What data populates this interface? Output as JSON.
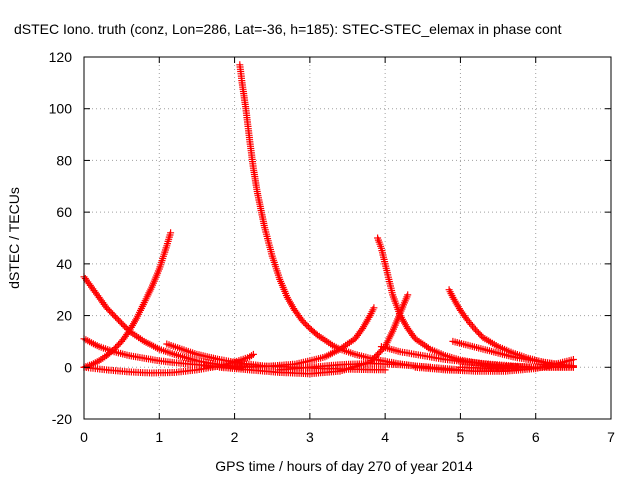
{
  "chart_data": {
    "type": "scatter",
    "title": "dSTEC Iono. truth (conz, Lon=286, Lat=-36, h=185): STEC-STEC_elemax in phase cont",
    "xlabel": "GPS time / hours of day 270 of year 2014",
    "ylabel": "dSTEC  / TECUs",
    "xlim": [
      0,
      7
    ],
    "ylim": [
      -20,
      120
    ],
    "xticks": [
      0,
      1,
      2,
      3,
      4,
      5,
      6,
      7
    ],
    "yticks": [
      -20,
      0,
      20,
      40,
      60,
      80,
      100,
      120
    ],
    "grid": true,
    "legend": "none",
    "marker": "+",
    "color": "#ff0000",
    "series": [
      {
        "x": [
          0.0,
          0.1,
          0.2,
          0.3,
          0.4,
          0.5,
          0.6,
          0.7,
          0.8,
          0.9,
          1.0,
          1.1,
          1.15
        ],
        "y": [
          0.0,
          1.0,
          2.5,
          4.5,
          7.0,
          10.0,
          14.0,
          19.0,
          25.0,
          31.0,
          38.0,
          47.0,
          52.0
        ]
      },
      {
        "x": [
          0.0,
          0.1,
          0.2,
          0.3,
          0.4,
          0.5,
          0.6,
          0.8,
          1.0,
          1.2,
          1.5,
          1.8,
          2.1
        ],
        "y": [
          35.0,
          31.0,
          27.0,
          23.0,
          20.0,
          17.0,
          14.0,
          10.0,
          7.0,
          5.0,
          2.5,
          1.0,
          0.0
        ]
      },
      {
        "x": [
          0.0,
          0.2,
          0.4,
          0.6,
          0.8,
          1.0,
          1.2,
          1.5,
          1.8
        ],
        "y": [
          11.0,
          8.0,
          6.0,
          4.5,
          3.5,
          2.5,
          1.8,
          1.0,
          0.3
        ]
      },
      {
        "x": [
          0.0,
          0.3,
          0.6,
          0.9,
          1.2,
          1.5,
          1.8,
          2.0,
          2.2,
          2.25
        ],
        "y": [
          0.0,
          -1.0,
          -1.8,
          -2.2,
          -2.0,
          -1.0,
          0.5,
          2.0,
          4.0,
          5.0
        ]
      },
      {
        "x": [
          1.1,
          1.3,
          1.5,
          1.8,
          2.1,
          2.4,
          2.8,
          3.2,
          3.6,
          4.0
        ],
        "y": [
          9.0,
          7.0,
          5.0,
          3.0,
          1.5,
          0.5,
          0.0,
          -0.5,
          -0.8,
          -1.0
        ]
      },
      {
        "x": [
          2.07,
          2.1,
          2.15,
          2.2,
          2.25,
          2.3,
          2.4,
          2.5,
          2.6,
          2.7,
          2.8,
          2.9,
          3.0,
          3.1,
          3.2,
          3.3,
          3.4,
          3.6,
          3.8,
          4.0,
          4.2,
          4.4,
          4.6
        ],
        "y": [
          117.0,
          110.0,
          100.0,
          88.0,
          77.0,
          68.0,
          54.0,
          43.0,
          34.0,
          27.0,
          22.0,
          18.0,
          15.0,
          12.5,
          10.5,
          8.5,
          7.0,
          5.0,
          3.5,
          2.3,
          1.3,
          0.5,
          0.0
        ]
      },
      {
        "x": [
          1.6,
          2.0,
          2.4,
          2.8,
          3.0,
          3.2,
          3.4,
          3.6,
          3.7,
          3.8,
          3.85
        ],
        "y": [
          0.5,
          0.0,
          0.3,
          1.2,
          2.5,
          4.0,
          7.0,
          11.0,
          15.0,
          20.0,
          23.0
        ]
      },
      {
        "x": [
          1.8,
          2.2,
          2.6,
          3.0,
          3.4,
          3.8,
          4.0,
          4.1,
          4.2,
          4.3
        ],
        "y": [
          0.0,
          -1.0,
          -2.0,
          -2.5,
          -1.5,
          2.0,
          8.0,
          14.0,
          21.0,
          28.0
        ]
      },
      {
        "x": [
          2.6,
          3.0,
          3.4,
          3.8,
          4.2,
          4.6,
          5.0
        ],
        "y": [
          -1.0,
          0.0,
          1.0,
          1.5,
          1.0,
          0.0,
          -1.0
        ]
      },
      {
        "x": [
          3.9,
          3.95,
          4.0,
          4.05,
          4.1,
          4.2,
          4.3,
          4.4,
          4.6,
          4.8,
          5.0,
          5.3,
          5.6,
          6.0,
          6.5
        ],
        "y": [
          50.0,
          46.0,
          40.0,
          34.0,
          28.0,
          20.0,
          15.0,
          11.0,
          7.0,
          4.5,
          2.8,
          1.3,
          0.4,
          0.0,
          0.0
        ]
      },
      {
        "x": [
          3.95,
          4.2,
          4.5,
          4.8,
          5.1,
          5.4,
          5.7,
          6.0,
          6.3,
          6.5
        ],
        "y": [
          8.0,
          6.0,
          4.5,
          3.0,
          2.0,
          1.2,
          0.5,
          0.0,
          0.0,
          0.0
        ]
      },
      {
        "x": [
          4.85,
          4.9,
          5.0,
          5.1,
          5.2,
          5.3,
          5.5,
          5.7,
          5.9,
          6.1,
          6.3,
          6.5
        ],
        "y": [
          30.0,
          27.0,
          22.0,
          18.0,
          14.5,
          11.5,
          8.0,
          5.5,
          3.5,
          2.0,
          1.0,
          0.5
        ]
      },
      {
        "x": [
          4.9,
          5.1,
          5.3,
          5.5,
          5.7,
          5.9,
          6.1,
          6.3,
          6.5
        ],
        "y": [
          10.0,
          8.5,
          7.0,
          5.5,
          4.0,
          3.0,
          2.0,
          1.2,
          0.5
        ]
      },
      {
        "x": [
          4.4,
          4.8,
          5.2,
          5.6,
          6.0,
          6.3,
          6.5
        ],
        "y": [
          0.0,
          -1.0,
          -1.5,
          -1.5,
          -0.5,
          1.5,
          3.0
        ]
      },
      {
        "x": [
          5.0,
          5.5,
          6.0,
          6.5
        ],
        "y": [
          0.0,
          -0.5,
          0.0,
          0.5
        ]
      }
    ]
  }
}
